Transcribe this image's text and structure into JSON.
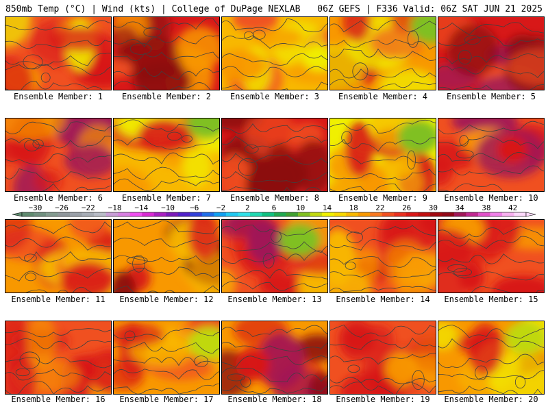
{
  "header": {
    "left": "850mb Temp (°C) | Wind (kts) | College of DuPage NEXLAB",
    "right": "06Z GEFS | F336 Valid: 06Z SAT JUN 21 2025"
  },
  "colorbar": {
    "tick_labels": [
      "-30",
      "-26",
      "-22",
      "-18",
      "-14",
      "-10",
      "-6",
      "-2",
      "2",
      "6",
      "10",
      "14",
      "18",
      "22",
      "26",
      "30",
      "34",
      "38",
      "42"
    ],
    "range": [
      -32,
      44
    ],
    "step": 2,
    "colors": [
      "#5f8a6f",
      "#708f7f",
      "#839a8f",
      "#8f969b",
      "#9aa0a8",
      "#a7adb6",
      "#b8bcc6",
      "#c79cd6",
      "#d77fe0",
      "#f04ef0",
      "#d82ad2",
      "#a820c0",
      "#7a1ab8",
      "#5020c8",
      "#3040d8",
      "#1f6ee8",
      "#10a0f0",
      "#20c8f0",
      "#30e0e8",
      "#20d8b0",
      "#10c080",
      "#20a850",
      "#40a030",
      "#80c020",
      "#c0d810",
      "#f0f000",
      "#f8d800",
      "#f8b800",
      "#f89800",
      "#f87820",
      "#f05020",
      "#e83020",
      "#d81818",
      "#c01010",
      "#a00810",
      "#900818",
      "#a01858",
      "#c02890",
      "#e050c8",
      "#f080e8",
      "#f8b0f0",
      "#fcd8fa"
    ]
  },
  "members": [
    {
      "label": "Ensemble Member: 1"
    },
    {
      "label": "Ensemble Member: 2"
    },
    {
      "label": "Ensemble Member: 3"
    },
    {
      "label": "Ensemble Member: 4"
    },
    {
      "label": "Ensemble Member: 5"
    },
    {
      "label": "Ensemble Member: 6"
    },
    {
      "label": "Ensemble Member: 7"
    },
    {
      "label": "Ensemble Member: 8"
    },
    {
      "label": "Ensemble Member: 9"
    },
    {
      "label": "Ensemble Member: 10"
    },
    {
      "label": "Ensemble Member: 11"
    },
    {
      "label": "Ensemble Member: 12"
    },
    {
      "label": "Ensemble Member: 13"
    },
    {
      "label": "Ensemble Member: 14"
    },
    {
      "label": "Ensemble Member: 15"
    },
    {
      "label": "Ensemble Member: 16"
    },
    {
      "label": "Ensemble Member: 17"
    },
    {
      "label": "Ensemble Member: 18"
    },
    {
      "label": "Ensemble Member: 19"
    },
    {
      "label": "Ensemble Member: 20"
    }
  ],
  "palette": {
    "hot": "#8c0c10",
    "red": "#d81818",
    "orange_red": "#f05020",
    "orange": "#f89800",
    "amber": "#f8b800",
    "yellow": "#f0f000",
    "lime": "#c0d810",
    "green": "#80c020",
    "magenta": "#a01858",
    "contour": "#404040"
  }
}
